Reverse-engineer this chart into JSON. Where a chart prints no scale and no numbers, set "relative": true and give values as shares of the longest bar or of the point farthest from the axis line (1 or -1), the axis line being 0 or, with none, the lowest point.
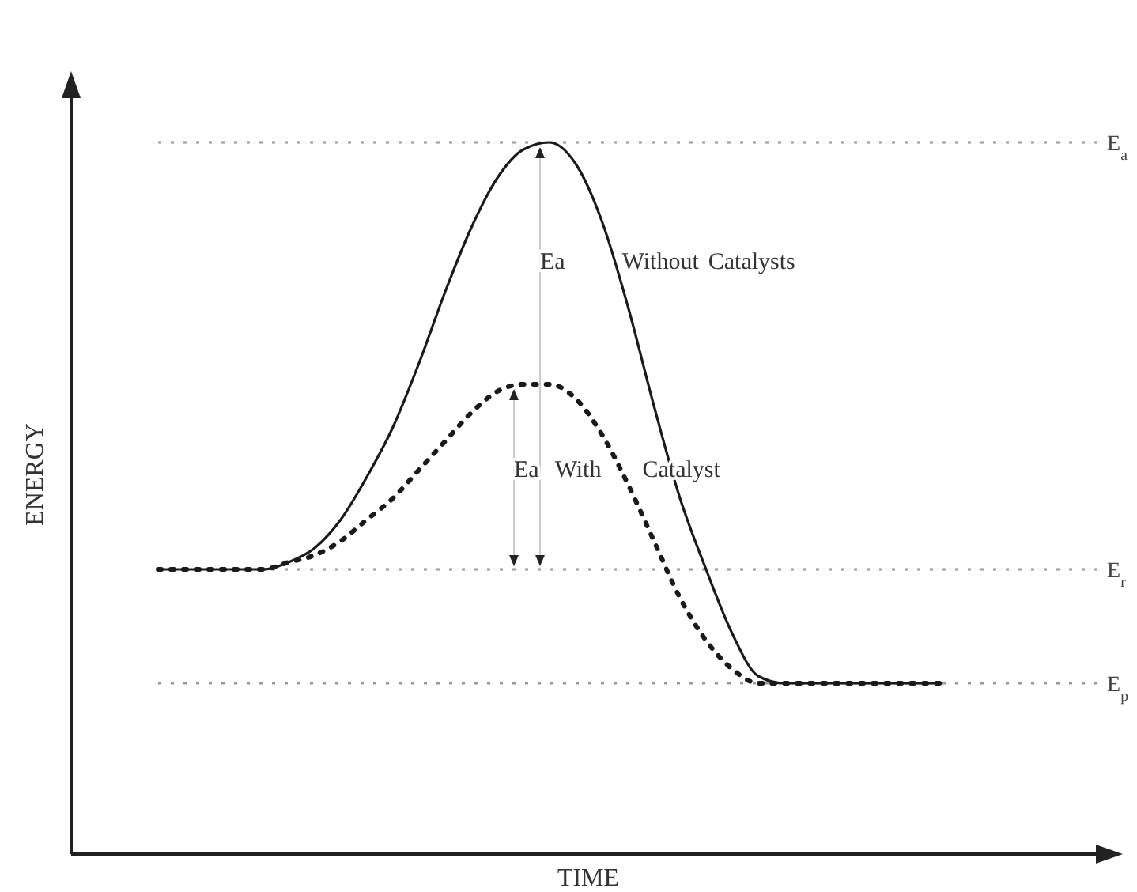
{
  "chart_data": {
    "type": "line",
    "relative": true,
    "xlabel": "TIME",
    "ylabel": "ENERGY",
    "categories": [
      null,
      null,
      null,
      null,
      null,
      null,
      null,
      null,
      null,
      null,
      null,
      null,
      null,
      null,
      null,
      null,
      null,
      null,
      null,
      null,
      null,
      null,
      null,
      null,
      null,
      null,
      null,
      null,
      null,
      null,
      null
    ],
    "series": [
      {
        "color": "#1a1a1a",
        "line_style": "solid",
        "values": [
          0.4,
          0.4,
          0.4,
          0.4,
          0.4,
          0.41,
          0.43,
          0.47,
          0.53,
          0.6,
          0.69,
          0.79,
          0.88,
          0.95,
          0.99,
          1.0,
          0.97,
          0.89,
          0.77,
          0.63,
          0.5,
          0.4,
          0.31,
          0.25,
          0.24,
          0.24,
          0.24,
          0.24,
          0.24,
          0.24,
          0.24
        ]
      },
      {
        "color": "#1a1a1a",
        "line_style": "dotted",
        "values": [
          0.4,
          0.4,
          0.4,
          0.4,
          0.4,
          0.41,
          0.42,
          0.44,
          0.47,
          0.5,
          0.54,
          0.58,
          0.62,
          0.65,
          0.66,
          0.66,
          0.64,
          0.59,
          0.52,
          0.44,
          0.36,
          0.3,
          0.26,
          0.24,
          0.24,
          0.24,
          0.24,
          0.24,
          0.24,
          0.24,
          0.24
        ]
      }
    ],
    "ref_lines": [
      {
        "axis": "y",
        "value": 1.0,
        "label": "E$_{a}$",
        "color": "#999999",
        "line_style": "dotted"
      },
      {
        "axis": "y",
        "value": 0.4,
        "label": "E$_{r}$",
        "color": "#999999",
        "line_style": "dotted"
      },
      {
        "axis": "y",
        "value": 0.24,
        "label": "E$_{p}$",
        "color": "#999999",
        "line_style": "dotted"
      }
    ],
    "annotations": [
      "Ea Without Catalysts",
      "Ea With Catalyst"
    ],
    "grid": false,
    "marker": "none"
  }
}
